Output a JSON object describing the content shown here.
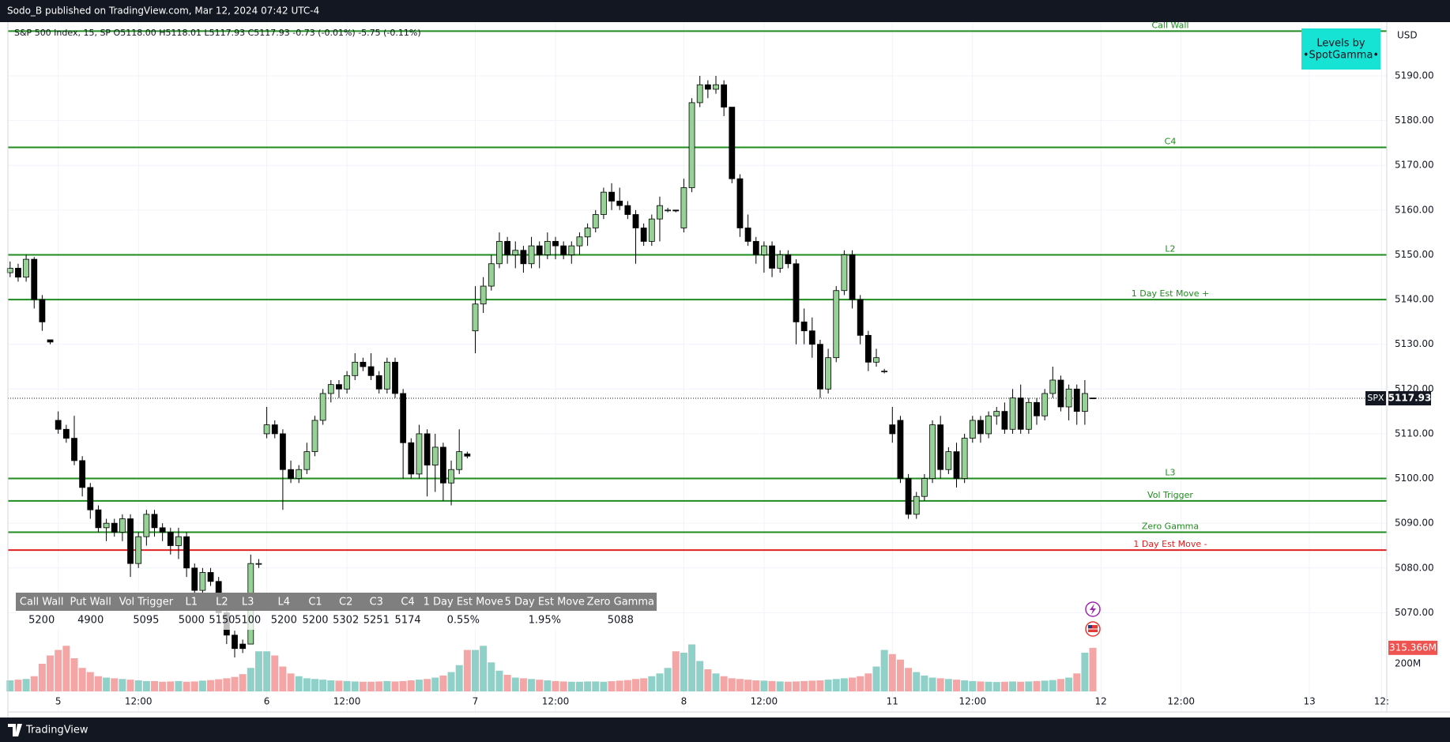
{
  "header": {
    "publisher": "Sodo_B published on TradingView.com, Mar 12, 2024 07:42 UTC-4",
    "legend": "S&P 500 Index, 15, SP  O5118.00  H5118.01  L5117.93  C5117.93  -0.73 (-0.01%)  -5.75 (-0.11%)",
    "currency": "USD",
    "badge": [
      "Levels by",
      "•SpotGamma•"
    ],
    "footer": "TradingView"
  },
  "table": {
    "headers": [
      "Call Wall",
      "Put Wall",
      "Vol Trigger",
      "L1",
      "L2",
      "L3",
      "L4",
      "C1",
      "C2",
      "C3",
      "C4",
      "1 Day Est Move",
      "5 Day Est Move",
      "Zero Gamma"
    ],
    "values": [
      "5200",
      "4900",
      "5095",
      "5000",
      "5150",
      "5100",
      "5200",
      "5200",
      "5302",
      "5251",
      "5174",
      "0.55%",
      "1.95%",
      "5088"
    ]
  },
  "chart_data": {
    "type": "candlestick",
    "symbol": "SPX",
    "last_price_label": "5117.93",
    "last_volume_label": "315.366M",
    "up_color": "#96d296",
    "down_color": "#000000",
    "wick_color": "#000000",
    "volume_up_color": "#8fd1c8",
    "volume_down_color": "#f4a5a5",
    "ylim": [
      5048,
      5202
    ],
    "yticks": [
      {
        "value": 5070,
        "label": "5070.00"
      },
      {
        "value": 5080,
        "label": "5080.00"
      },
      {
        "value": 5090,
        "label": "5090.00"
      },
      {
        "value": 5100,
        "label": "5100.00"
      },
      {
        "value": 5110,
        "label": "5110.00"
      },
      {
        "value": 5120,
        "label": "5120.00"
      },
      {
        "value": 5130,
        "label": "5130.00"
      },
      {
        "value": 5140,
        "label": "5140.00"
      },
      {
        "value": 5150,
        "label": "5150.00"
      },
      {
        "value": 5160,
        "label": "5160.00"
      },
      {
        "value": 5170,
        "label": "5170.00"
      },
      {
        "value": 5180,
        "label": "5180.00"
      },
      {
        "value": 5190,
        "label": "5190.00"
      }
    ],
    "vlim": [
      0,
      400
    ],
    "vticks": [
      {
        "value": 200,
        "label": "200M"
      }
    ],
    "grid": true,
    "levels": [
      {
        "name": "Call Wall",
        "value": 5200,
        "color": "#1e8c1e"
      },
      {
        "name": "C4",
        "value": 5174,
        "color": "#1e8c1e"
      },
      {
        "name": "L2",
        "value": 5150,
        "color": "#1e8c1e"
      },
      {
        "name": "1 Day Est Move +",
        "value": 5140,
        "color": "#1e8c1e"
      },
      {
        "name": "L3",
        "value": 5100,
        "color": "#1e8c1e"
      },
      {
        "name": "Vol Trigger",
        "value": 5095,
        "color": "#1e8c1e"
      },
      {
        "name": "Zero Gamma",
        "value": 5088,
        "color": "#1e8c1e"
      },
      {
        "name": "1 Day Est Move -",
        "value": 5084,
        "color": "#e02020"
      }
    ],
    "categories": [
      null,
      null,
      null,
      null,
      null,
      null,
      "5",
      null,
      null,
      null,
      null,
      null,
      null,
      null,
      null,
      null,
      "12:00",
      null,
      null,
      null,
      null,
      null,
      null,
      null,
      null,
      null,
      null,
      null,
      null,
      null,
      null,
      null,
      "6",
      null,
      null,
      null,
      null,
      null,
      null,
      null,
      null,
      null,
      "12:00",
      null,
      null,
      null,
      null,
      null,
      null,
      null,
      null,
      null,
      null,
      null,
      null,
      null,
      null,
      null,
      "7",
      null,
      null,
      null,
      null,
      null,
      null,
      null,
      null,
      null,
      "12:00",
      null,
      null,
      null,
      null,
      null,
      null,
      null,
      null,
      null,
      null,
      null,
      null,
      null,
      null,
      null,
      "8",
      null,
      null,
      null,
      null,
      null,
      null,
      null,
      null,
      null,
      "12:00",
      null,
      null,
      null,
      null,
      null,
      null,
      null,
      null,
      null,
      null,
      null,
      null,
      null,
      null,
      null,
      "11",
      null,
      null,
      null,
      null,
      null,
      null,
      null,
      null,
      null,
      "12:00",
      null,
      null,
      null,
      null,
      null,
      null,
      null,
      null,
      null,
      null,
      null,
      null,
      null,
      null,
      null,
      "12",
      null,
      null,
      null,
      null,
      null,
      null,
      null,
      null,
      null,
      "12:00",
      null,
      null,
      null,
      null,
      null,
      null,
      null,
      null,
      null,
      null,
      null,
      null,
      null,
      null,
      null,
      "13",
      null,
      null,
      null,
      null,
      null,
      null,
      null,
      null,
      "12:"
    ],
    "candles": [
      [
        5146,
        5148.5,
        5145,
        5147
      ],
      [
        5147,
        5148,
        5144,
        5145
      ],
      [
        5145,
        5150,
        5144,
        5149
      ],
      [
        5149,
        5149.5,
        5138,
        5140
      ],
      [
        5140,
        5141,
        5133,
        5135
      ],
      [
        5131,
        5131,
        5130,
        5130.5
      ],
      [
        5113,
        5115,
        5110,
        5111
      ],
      [
        5111,
        5112,
        5108,
        5109
      ],
      [
        5109,
        5114,
        5103,
        5104
      ],
      [
        5104,
        5105,
        5096,
        5098
      ],
      [
        5098,
        5099,
        5091,
        5093
      ],
      [
        5093,
        5094,
        5088,
        5089
      ],
      [
        5089,
        5091,
        5086,
        5090
      ],
      [
        5090,
        5091,
        5087,
        5088
      ],
      [
        5088,
        5092,
        5086,
        5091
      ],
      [
        5091,
        5092,
        5078,
        5081
      ],
      [
        5081,
        5088,
        5080,
        5087
      ],
      [
        5087,
        5093,
        5085,
        5092
      ],
      [
        5092,
        5093,
        5087,
        5089
      ],
      [
        5089,
        5090,
        5086,
        5088
      ],
      [
        5088,
        5089,
        5083,
        5085
      ],
      [
        5085,
        5089,
        5082,
        5087
      ],
      [
        5087,
        5088,
        5078,
        5080
      ],
      [
        5080,
        5081,
        5074,
        5075
      ],
      [
        5075,
        5080,
        5074,
        5079
      ],
      [
        5079,
        5080,
        5076,
        5077
      ],
      [
        5077,
        5078,
        5068,
        5070
      ],
      [
        5070,
        5071,
        5063,
        5065
      ],
      [
        5065,
        5066,
        5060,
        5062
      ],
      [
        5063,
        5064,
        5061,
        5062
      ],
      [
        5063,
        5083,
        5063,
        5081
      ],
      [
        5081,
        5082,
        5080,
        5081
      ],
      [
        5110,
        5116,
        5109,
        5112
      ],
      [
        5112,
        5113,
        5109,
        5110
      ],
      [
        5110,
        5111,
        5093,
        5102
      ],
      [
        5102,
        5104,
        5099,
        5100
      ],
      [
        5100,
        5103,
        5099,
        5102
      ],
      [
        5102,
        5108,
        5101,
        5106
      ],
      [
        5106,
        5114,
        5105,
        5113
      ],
      [
        5113,
        5120,
        5112,
        5119
      ],
      [
        5119,
        5122,
        5117,
        5121
      ],
      [
        5121,
        5122,
        5118,
        5120
      ],
      [
        5120,
        5124,
        5119,
        5123
      ],
      [
        5123,
        5128,
        5122,
        5126
      ],
      [
        5126,
        5127,
        5124,
        5125
      ],
      [
        5125,
        5128,
        5122,
        5123
      ],
      [
        5123,
        5124,
        5119,
        5120
      ],
      [
        5120,
        5127,
        5119,
        5126
      ],
      [
        5126,
        5127,
        5118,
        5119
      ],
      [
        5119,
        5120,
        5100,
        5108
      ],
      [
        5108,
        5109,
        5100,
        5101
      ],
      [
        5101,
        5112,
        5100,
        5110
      ],
      [
        5110,
        5111,
        5096,
        5103
      ],
      [
        5103,
        5110,
        5097,
        5107
      ],
      [
        5107,
        5108,
        5095,
        5099
      ],
      [
        5099,
        5104,
        5094,
        5102
      ],
      [
        5102,
        5111,
        5101,
        5106
      ],
      [
        5105.5,
        5106,
        5104.5,
        5105
      ],
      [
        5133,
        5143,
        5128,
        5139
      ],
      [
        5139,
        5145,
        5137,
        5143
      ],
      [
        5143,
        5150,
        5142,
        5148
      ],
      [
        5148,
        5155,
        5147,
        5153
      ],
      [
        5153,
        5154,
        5148,
        5150
      ],
      [
        5150,
        5153,
        5147,
        5151
      ],
      [
        5151,
        5152,
        5146,
        5148
      ],
      [
        5148,
        5154,
        5147,
        5152
      ],
      [
        5152,
        5153,
        5147,
        5150
      ],
      [
        5150,
        5155,
        5149,
        5153
      ],
      [
        5153,
        5154,
        5149,
        5152
      ],
      [
        5152,
        5153,
        5149,
        5150
      ],
      [
        5150,
        5153,
        5148,
        5152
      ],
      [
        5152,
        5155,
        5150,
        5154
      ],
      [
        5154,
        5157,
        5152,
        5156
      ],
      [
        5156,
        5160,
        5155,
        5159
      ],
      [
        5159,
        5165,
        5158,
        5164
      ],
      [
        5164,
        5166,
        5160,
        5162
      ],
      [
        5162,
        5165,
        5160,
        5161
      ],
      [
        5161,
        5162,
        5158,
        5159
      ],
      [
        5159,
        5160,
        5148,
        5156
      ],
      [
        5156,
        5157,
        5152,
        5153
      ],
      [
        5153,
        5159,
        5152,
        5158
      ],
      [
        5158,
        5163,
        5153,
        5161
      ],
      [
        5160,
        5160.5,
        5159.5,
        5160
      ],
      [
        5160,
        5160,
        5159.5,
        5159.8
      ],
      [
        5156,
        5167,
        5155,
        5165
      ],
      [
        5165,
        5185,
        5164,
        5184
      ],
      [
        5184,
        5190,
        5183,
        5188
      ],
      [
        5188,
        5189,
        5185,
        5187
      ],
      [
        5187,
        5190,
        5186,
        5188
      ],
      [
        5188,
        5189,
        5181,
        5183
      ],
      [
        5183,
        5183,
        5166,
        5167
      ],
      [
        5167,
        5168,
        5154,
        5156
      ],
      [
        5156,
        5159,
        5152,
        5153
      ],
      [
        5153,
        5154,
        5148,
        5150
      ],
      [
        5150,
        5153,
        5146,
        5152
      ],
      [
        5152,
        5153,
        5145,
        5147
      ],
      [
        5147,
        5151,
        5146,
        5150
      ],
      [
        5150,
        5151,
        5147,
        5148
      ],
      [
        5148,
        5149,
        5130,
        5135
      ],
      [
        5135,
        5138,
        5130,
        5133
      ],
      [
        5133,
        5136,
        5127,
        5130
      ],
      [
        5130,
        5131,
        5118,
        5120
      ],
      [
        5120,
        5129,
        5119,
        5127
      ],
      [
        5127,
        5143,
        5126,
        5142
      ],
      [
        5142,
        5151,
        5141,
        5150
      ],
      [
        5150,
        5151,
        5138,
        5140
      ],
      [
        5140,
        5141,
        5130,
        5132
      ],
      [
        5132,
        5133,
        5124,
        5126
      ],
      [
        5126,
        5129,
        5125,
        5127
      ],
      [
        5124,
        5124.5,
        5123.5,
        5124
      ],
      [
        5112,
        5116,
        5108,
        5110
      ],
      [
        5113,
        5114,
        5099,
        5100
      ],
      [
        5100,
        5101,
        5091,
        5092
      ],
      [
        5092,
        5097,
        5091,
        5096
      ],
      [
        5096,
        5101,
        5095,
        5100
      ],
      [
        5100,
        5113,
        5099,
        5112
      ],
      [
        5112,
        5114,
        5100,
        5102
      ],
      [
        5102,
        5107,
        5101,
        5106
      ],
      [
        5106,
        5108,
        5098,
        5100
      ],
      [
        5100,
        5110,
        5099,
        5109
      ],
      [
        5109,
        5114,
        5108,
        5113
      ],
      [
        5113,
        5114,
        5108,
        5110
      ],
      [
        5110,
        5115,
        5109,
        5114
      ],
      [
        5114,
        5116,
        5112,
        5115
      ],
      [
        5115,
        5117,
        5110,
        5111
      ],
      [
        5111,
        5120,
        5110,
        5118
      ],
      [
        5118,
        5121,
        5110,
        5111
      ],
      [
        5111,
        5118,
        5110,
        5117
      ],
      [
        5117,
        5118,
        5112,
        5114
      ],
      [
        5114,
        5120,
        5113,
        5119
      ],
      [
        5119,
        5125,
        5118,
        5122
      ],
      [
        5122,
        5123,
        5115,
        5116
      ],
      [
        5116,
        5121,
        5113,
        5120
      ],
      [
        5120,
        5121,
        5112,
        5115
      ],
      [
        5115,
        5122,
        5112,
        5119
      ],
      [
        5118.0,
        5118.01,
        5117.93,
        5117.93
      ],
      null,
      null,
      null,
      null,
      null,
      null,
      null,
      null,
      null,
      null,
      null,
      null,
      null,
      null,
      null,
      null,
      null,
      null,
      null,
      null,
      null,
      null,
      null,
      null,
      null,
      null,
      null,
      null,
      null,
      null,
      null,
      null,
      null,
      null,
      null,
      null
    ],
    "volumes": [
      80,
      85,
      90,
      110,
      200,
      260,
      300,
      330,
      240,
      170,
      140,
      110,
      100,
      95,
      90,
      85,
      80,
      75,
      75,
      70,
      72,
      75,
      70,
      72,
      78,
      82,
      88,
      95,
      105,
      125,
      170,
      290,
      290,
      260,
      180,
      130,
      110,
      95,
      90,
      85,
      80,
      78,
      75,
      72,
      70,
      70,
      72,
      75,
      72,
      75,
      80,
      85,
      90,
      100,
      115,
      140,
      190,
      300,
      300,
      330,
      210,
      150,
      120,
      100,
      95,
      90,
      85,
      80,
      75,
      72,
      70,
      70,
      72,
      72,
      70,
      74,
      78,
      82,
      90,
      95,
      110,
      130,
      170,
      290,
      280,
      340,
      220,
      160,
      130,
      110,
      95,
      90,
      85,
      80,
      78,
      75,
      72,
      70,
      72,
      75,
      78,
      80,
      85,
      90,
      95,
      100,
      110,
      130,
      180,
      300,
      270,
      230,
      170,
      140,
      115,
      100,
      95,
      90,
      85,
      80,
      75,
      72,
      70,
      68,
      70,
      72,
      70,
      72,
      75,
      78,
      82,
      90,
      100,
      130,
      280,
      315.366,
      null,
      null,
      null,
      null,
      null,
      null,
      null,
      null,
      null,
      null,
      null,
      null,
      null,
      null,
      null,
      null,
      null,
      null,
      null,
      null,
      null,
      null,
      null,
      null,
      null,
      null,
      null,
      null,
      null,
      null,
      null,
      null,
      null,
      null,
      null,
      null
    ]
  }
}
